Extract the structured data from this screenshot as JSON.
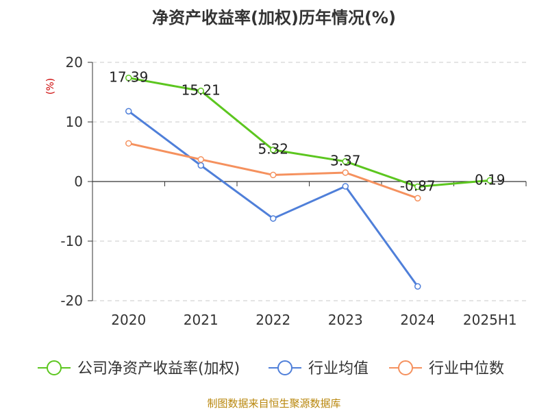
{
  "chart_data": {
    "type": "line",
    "title": "净资产收益率(加权)历年情况(%)",
    "ylabel": "(%)",
    "xlabel": "",
    "categories": [
      "2020",
      "2021",
      "2022",
      "2023",
      "2024",
      "2025H1"
    ],
    "ylim": [
      -20,
      20
    ],
    "yticks": [
      -20,
      -10,
      0,
      10,
      20
    ],
    "grid": true,
    "legend_position": "bottom",
    "series": [
      {
        "name": "公司净资产收益率(加权)",
        "color": "#5cc61f",
        "values": [
          17.39,
          15.21,
          5.32,
          3.37,
          -0.87,
          0.19
        ],
        "data_labels": [
          "17.39",
          "15.21",
          "5.32",
          "3.37",
          "-0.87",
          "0.19"
        ]
      },
      {
        "name": "行业均值",
        "color": "#4f7fd9",
        "values": [
          11.8,
          2.7,
          -6.2,
          -0.8,
          -17.6,
          null
        ]
      },
      {
        "name": "行业中位数",
        "color": "#f5915e",
        "values": [
          6.4,
          3.7,
          1.1,
          1.5,
          -2.8,
          null
        ]
      }
    ],
    "source": "制图数据来自恒生聚源数据库"
  }
}
